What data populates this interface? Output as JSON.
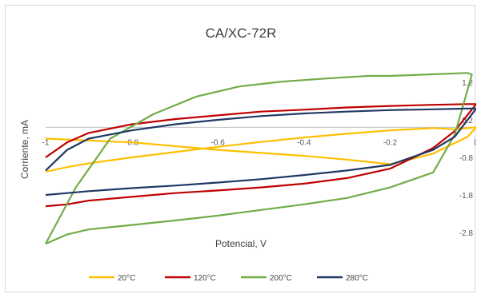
{
  "chart_data": {
    "type": "line",
    "title": "CA/XC-72R",
    "xlabel": "Potencial, V",
    "ylabel": "Corriente, mA",
    "xlim": [
      -1,
      0
    ],
    "ylim": [
      -2.8,
      1.2
    ],
    "x_ticks": [
      "-1",
      "-0.8",
      "-0.6",
      "-0.4",
      "-0.2",
      "0"
    ],
    "y_ticks": [
      "1.2",
      "0.2",
      "-0.8",
      "-1.8",
      "-2.8"
    ],
    "grid": false,
    "legend_position": "bottom",
    "series": [
      {
        "name": "20°C",
        "color": "#FFC000",
        "x": [
          -1,
          -0.9,
          -0.8,
          -0.7,
          -0.6,
          -0.5,
          -0.4,
          -0.3,
          -0.2,
          -0.1,
          -0.02,
          0,
          -0.05,
          -0.1,
          -0.2,
          -0.3,
          -0.4,
          -0.5,
          -0.6,
          -0.7,
          -0.8,
          -0.9,
          -0.95,
          -1
        ],
        "y": [
          -0.3,
          -0.35,
          -0.4,
          -0.5,
          -0.6,
          -0.68,
          -0.76,
          -0.86,
          -0.98,
          -0.7,
          -0.25,
          0.0,
          -0.05,
          -0.02,
          -0.08,
          -0.17,
          -0.27,
          -0.39,
          -0.52,
          -0.66,
          -0.8,
          -0.96,
          -1.06,
          -1.18
        ]
      },
      {
        "name": "120°C",
        "color": "#C00000",
        "x": [
          -1,
          -0.95,
          -0.9,
          -0.8,
          -0.7,
          -0.6,
          -0.5,
          -0.4,
          -0.3,
          -0.2,
          -0.1,
          -0.02,
          0,
          -0.05,
          -0.1,
          -0.2,
          -0.3,
          -0.4,
          -0.5,
          -0.6,
          -0.7,
          -0.8,
          -0.9,
          -0.95,
          -1
        ],
        "y": [
          -0.8,
          -0.4,
          -0.15,
          0.08,
          0.22,
          0.32,
          0.42,
          0.47,
          0.53,
          0.57,
          0.6,
          0.62,
          0.62,
          -0.1,
          -0.55,
          -1.1,
          -1.35,
          -1.5,
          -1.6,
          -1.68,
          -1.75,
          -1.85,
          -1.95,
          -2.05,
          -2.1
        ]
      },
      {
        "name": "200°C",
        "color": "#70AD47",
        "x": [
          -1,
          -0.93,
          -0.85,
          -0.75,
          -0.65,
          -0.55,
          -0.45,
          -0.35,
          -0.25,
          -0.2,
          -0.02,
          -0.01,
          -0.05,
          -0.1,
          -0.2,
          -0.3,
          -0.4,
          -0.5,
          -0.6,
          -0.7,
          -0.8,
          -0.9,
          -0.95,
          -1
        ],
        "y": [
          -3.1,
          -1.6,
          -0.3,
          0.35,
          0.82,
          1.09,
          1.22,
          1.3,
          1.37,
          1.37,
          1.45,
          1.4,
          -0.2,
          -1.2,
          -1.6,
          -1.88,
          -2.05,
          -2.2,
          -2.35,
          -2.48,
          -2.6,
          -2.72,
          -2.85,
          -3.1
        ]
      },
      {
        "name": "280°C",
        "color": "#203864",
        "x": [
          -1,
          -0.95,
          -0.9,
          -0.8,
          -0.7,
          -0.6,
          -0.5,
          -0.4,
          -0.3,
          -0.2,
          -0.1,
          -0.02,
          0,
          -0.05,
          -0.1,
          -0.2,
          -0.3,
          -0.4,
          -0.5,
          -0.6,
          -0.7,
          -0.8,
          -0.9,
          -0.95,
          -1
        ],
        "y": [
          -1.15,
          -0.6,
          -0.3,
          -0.08,
          0.08,
          0.2,
          0.3,
          0.37,
          0.42,
          0.46,
          0.48,
          0.5,
          0.5,
          -0.25,
          -0.6,
          -1.0,
          -1.15,
          -1.27,
          -1.38,
          -1.47,
          -1.55,
          -1.62,
          -1.7,
          -1.75,
          -1.8
        ]
      }
    ]
  }
}
